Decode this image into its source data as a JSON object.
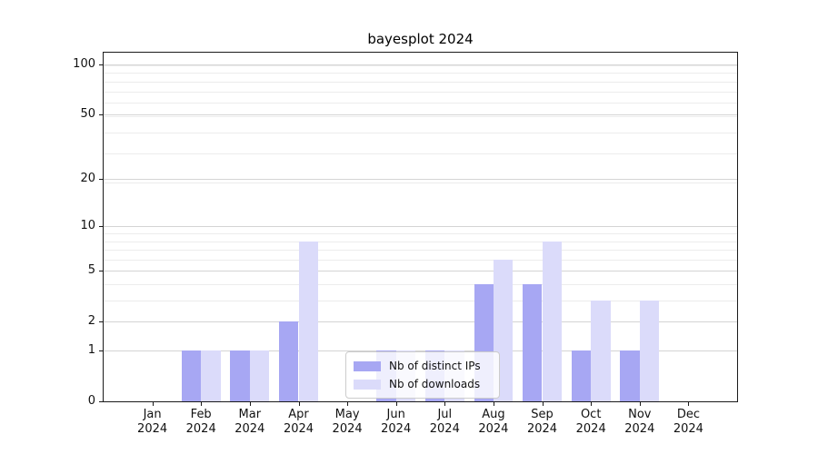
{
  "title": "bayesplot 2024",
  "chart_data": {
    "type": "bar",
    "title": "bayesplot 2024",
    "categories": [
      "Jan",
      "Feb",
      "Mar",
      "Apr",
      "May",
      "Jun",
      "Jul",
      "Aug",
      "Sep",
      "Oct",
      "Nov",
      "Dec"
    ],
    "x_year_label": "2024",
    "series": [
      {
        "name": "Nb of distinct IPs",
        "color": "#a7a7f3",
        "values": [
          0,
          1,
          1,
          2,
          0,
          1,
          1,
          4,
          4,
          1,
          1,
          0
        ]
      },
      {
        "name": "Nb of downloads",
        "color": "#dbdbfa",
        "values": [
          0,
          1,
          1,
          8,
          0,
          1,
          1,
          6,
          8,
          3,
          3,
          0
        ]
      }
    ],
    "yscale": "log1p",
    "ylim": [
      0,
      118
    ],
    "yticks": [
      0,
      1,
      2,
      5,
      10,
      20,
      50,
      100
    ],
    "grid": true,
    "grid_minor_values": [
      1,
      2,
      3,
      4,
      5,
      6,
      7,
      8,
      9,
      19,
      29,
      39,
      49,
      59,
      69,
      79,
      89,
      99
    ],
    "legend_position": "lower center",
    "colors": {
      "grid_minor": "#ececec",
      "grid_major": "#d4d4d4",
      "spine": "#1a1a1a",
      "text": "#111111"
    }
  }
}
